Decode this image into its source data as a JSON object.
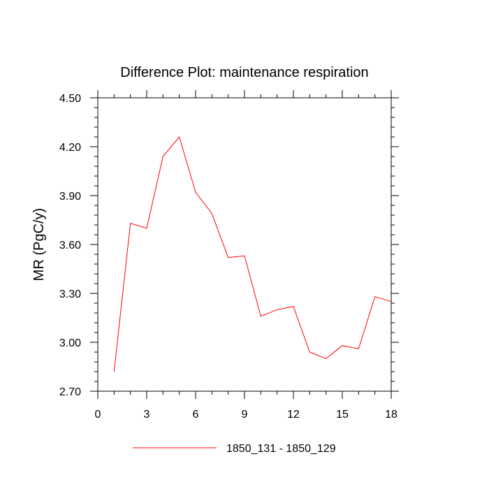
{
  "chart_data": {
    "type": "line",
    "title": "Difference Plot: maintenance respiration",
    "xlabel": "",
    "ylabel": "MR  (PgC/y)",
    "xlim": [
      0,
      18
    ],
    "ylim": [
      2.7,
      4.5
    ],
    "x_ticks": [
      0,
      3,
      6,
      9,
      12,
      15,
      18
    ],
    "x_tick_labels": [
      "0",
      "3",
      "6",
      "9",
      "12",
      "15",
      "18"
    ],
    "y_ticks": [
      2.7,
      3.0,
      3.3,
      3.6,
      3.9,
      4.2,
      4.5
    ],
    "y_tick_labels": [
      "2.70",
      "3.00",
      "3.30",
      "3.60",
      "3.90",
      "4.20",
      "4.50"
    ],
    "grid": false,
    "legend_position": "bottom-center",
    "series": [
      {
        "name": "1850_131 - 1850_129",
        "color": "#ff0000",
        "x": [
          1,
          2,
          3,
          4,
          5,
          6,
          7,
          8,
          9,
          10,
          11,
          12,
          13,
          14,
          15,
          16,
          17,
          18
        ],
        "values": [
          2.82,
          3.73,
          3.7,
          4.14,
          4.26,
          3.92,
          3.79,
          3.52,
          3.53,
          3.16,
          3.2,
          3.22,
          2.94,
          2.9,
          2.98,
          2.96,
          3.28,
          3.25
        ]
      }
    ]
  }
}
